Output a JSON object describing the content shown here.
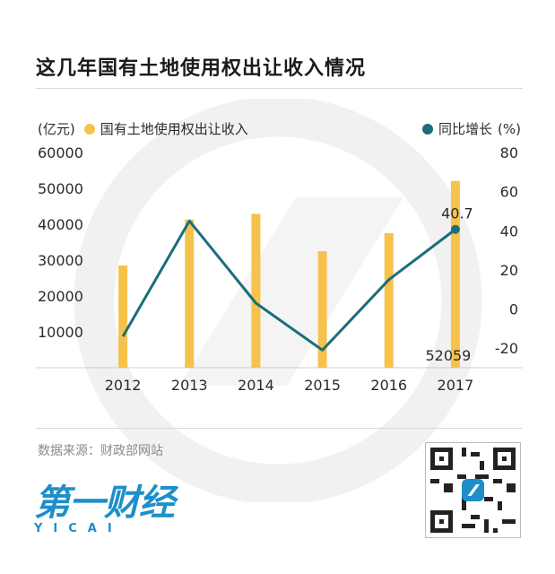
{
  "title": "这几年国有土地使用权出让收入情况",
  "legend": {
    "left_unit": "(亿元)",
    "series_bar": "国有土地使用权出让收入",
    "series_line": "同比增长",
    "right_unit": "(%)"
  },
  "source": "数据来源：财政部网站",
  "logo": {
    "main": "第一财经",
    "sub": "YICAI"
  },
  "colors": {
    "bar": "#F7C24B",
    "line": "#1A6E7A",
    "axis": "#cccccc",
    "text": "#2b2b2b"
  },
  "chart_data": {
    "type": "bar",
    "categories": [
      "2012",
      "2013",
      "2014",
      "2015",
      "2016",
      "2017"
    ],
    "series": [
      {
        "name": "国有土地使用权出让收入",
        "type": "bar",
        "axis": "left",
        "values": [
          28500,
          41300,
          42900,
          32500,
          37500,
          52059
        ]
      },
      {
        "name": "同比增长",
        "type": "line",
        "axis": "right",
        "values": [
          -14,
          45,
          3,
          -21,
          15,
          40.7
        ]
      }
    ],
    "yleft": {
      "ticks": [
        10000,
        20000,
        30000,
        40000,
        50000,
        60000
      ],
      "lim": [
        0,
        60000
      ]
    },
    "yright": {
      "ticks": [
        -20,
        0,
        20,
        40,
        60,
        80
      ],
      "lim": [
        -30,
        80
      ]
    },
    "annotations": [
      {
        "text": "40.7",
        "series": "同比增长",
        "category": "2017"
      },
      {
        "text": "52059",
        "series": "国有土地使用权出让收入",
        "category": "2017"
      }
    ],
    "grid": false
  }
}
